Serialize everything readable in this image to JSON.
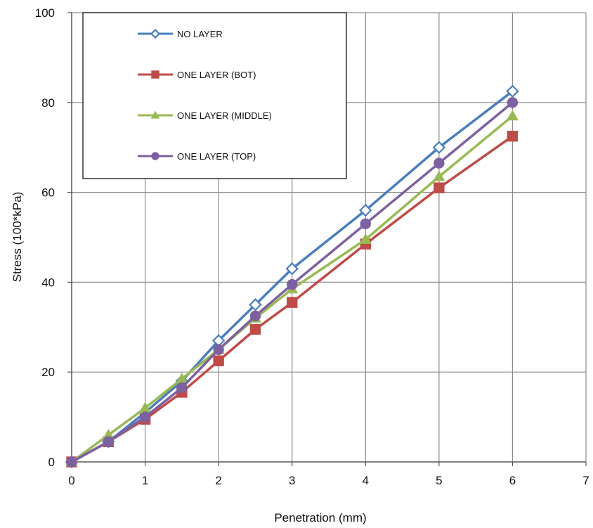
{
  "colors": {
    "gridline": "#8c8c8c",
    "axis": "#555555",
    "legend_border": "#000000"
  },
  "chart_data": {
    "type": "line",
    "title": "",
    "xlabel": "Penetration  (mm)",
    "ylabel": "Stress (100*kPa)",
    "xlim": [
      0,
      7
    ],
    "ylim": [
      0,
      100
    ],
    "xticks": [
      0,
      1,
      2,
      3,
      4,
      5,
      6,
      7
    ],
    "yticks": [
      0,
      20,
      40,
      60,
      80,
      100
    ],
    "grid": true,
    "legend_position": "top-left",
    "series": [
      {
        "name": "NO LAYER",
        "color": "#4a7ebb",
        "marker": "open-diamond",
        "x": [
          0,
          0.5,
          1,
          1.5,
          2,
          2.5,
          3,
          4,
          5,
          6
        ],
        "y": [
          0,
          4.5,
          11,
          18,
          27,
          35,
          43,
          56,
          70,
          82.5
        ]
      },
      {
        "name": "ONE LAYER (BOT)",
        "color": "#be4b48",
        "marker": "square",
        "x": [
          0,
          0.5,
          1,
          1.5,
          2,
          2.5,
          3,
          4,
          5,
          6
        ],
        "y": [
          0,
          4.5,
          9.5,
          15.5,
          22.5,
          29.5,
          35.5,
          48.5,
          61,
          72.5
        ]
      },
      {
        "name": "ONE LAYER (MIDDLE)",
        "color": "#98b954",
        "marker": "triangle",
        "x": [
          0,
          0.5,
          1,
          1.5,
          2,
          2.5,
          3,
          4,
          5,
          6
        ],
        "y": [
          0,
          6,
          12,
          18.5,
          25,
          32,
          38.5,
          49.5,
          63.5,
          77
        ]
      },
      {
        "name": "ONE LAYER (TOP)",
        "color": "#7d60a0",
        "marker": "circle",
        "x": [
          0,
          0.5,
          1,
          1.5,
          2,
          2.5,
          3,
          4,
          5,
          6
        ],
        "y": [
          0,
          4.5,
          10,
          16.5,
          25,
          32.5,
          39.5,
          53,
          66.5,
          80
        ]
      }
    ]
  }
}
